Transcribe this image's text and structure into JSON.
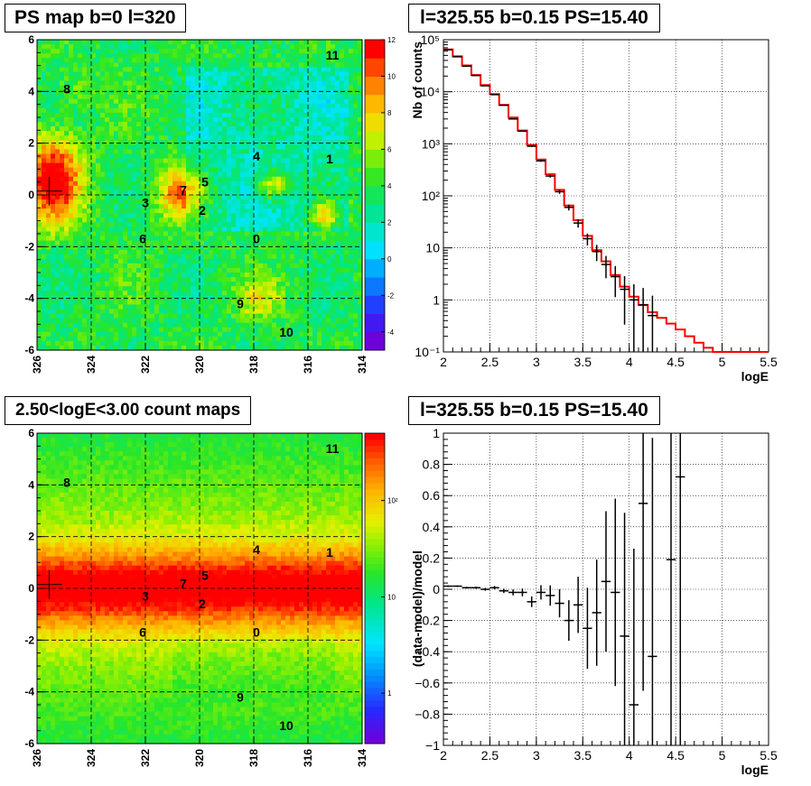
{
  "panels": {
    "tl": {
      "title": "PS map b=0 l=320"
    },
    "tr": {
      "title": "l=325.55 b=0.15 PS=15.40"
    },
    "bl": {
      "title": "2.50<logE<3.00 count maps"
    },
    "br": {
      "title": "l=325.55 b=0.15 PS=15.40"
    }
  },
  "chart_data": [
    {
      "type": "heatmap",
      "title": "PS map b=0 l=320",
      "xlim": [
        326,
        314
      ],
      "ylim": [
        -6,
        6
      ],
      "x_ticks": [
        326,
        324,
        322,
        320,
        318,
        316,
        314
      ],
      "y_ticks": [
        -6,
        -4,
        -2,
        0,
        2,
        4,
        6
      ],
      "colorbar": {
        "range": [
          -5,
          12
        ],
        "ticks": [
          -4,
          -2,
          0,
          2,
          4,
          6,
          8,
          10,
          12
        ]
      },
      "grid": true,
      "sources": [
        {
          "label": "0",
          "l": 317.9,
          "b": -1.7
        },
        {
          "label": "1",
          "l": 315.2,
          "b": 1.4
        },
        {
          "label": "2",
          "l": 319.9,
          "b": -0.6
        },
        {
          "label": "3",
          "l": 322.0,
          "b": -0.3
        },
        {
          "label": "4",
          "l": 317.9,
          "b": 1.5
        },
        {
          "label": "5",
          "l": 319.8,
          "b": 0.5
        },
        {
          "label": "6",
          "l": 322.1,
          "b": -1.7
        },
        {
          "label": "7",
          "l": 320.6,
          "b": 0.2
        },
        {
          "label": "8",
          "l": 324.9,
          "b": 4.1
        },
        {
          "label": "9",
          "l": 318.5,
          "b": -4.2
        },
        {
          "label": "10",
          "l": 316.8,
          "b": -5.3
        },
        {
          "label": "11",
          "l": 315.1,
          "b": 5.4
        }
      ],
      "marker": {
        "l": 325.55,
        "b": 0.15
      }
    },
    {
      "type": "line",
      "title": "l=325.55 b=0.15 PS=15.40",
      "xlabel": "logE",
      "ylabel": "Nb of counts",
      "xlim": [
        2,
        5.5
      ],
      "ylim": [
        0.1,
        100000
      ],
      "log_y": true,
      "x_ticks": [
        "2",
        "2.5",
        "3",
        "3.5",
        "4",
        "4.5",
        "5",
        "5.5"
      ],
      "y_ticks": [
        "10⁻¹",
        "1",
        "10",
        "10²",
        "10³",
        "10⁴",
        "10⁵"
      ],
      "grid": true,
      "series": [
        {
          "type": "step",
          "color": "#ff0000",
          "x": [
            2.0,
            2.1,
            2.2,
            2.3,
            2.4,
            2.5,
            2.6,
            2.7,
            2.8,
            2.9,
            3.0,
            3.1,
            3.2,
            3.3,
            3.4,
            3.5,
            3.6,
            3.7,
            3.8,
            3.9,
            4.0,
            4.1,
            4.2,
            4.3,
            4.4,
            4.5,
            4.6,
            4.7,
            4.8,
            4.9,
            5.0,
            5.1,
            5.2,
            5.3,
            5.4
          ],
          "values": [
            65000,
            48000,
            32000,
            21000,
            13500,
            9000,
            5600,
            3200,
            1800,
            950,
            500,
            260,
            130,
            65,
            34,
            17,
            9,
            5.5,
            3,
            1.8,
            1.15,
            0.8,
            0.58,
            0.45,
            0.35,
            0.27,
            0.2,
            0.15,
            0.12,
            0.1,
            0.1,
            0.1,
            0.1,
            0.1,
            0.1
          ]
        },
        {
          "type": "points",
          "color": "#000000",
          "x": [
            2.05,
            2.15,
            2.25,
            2.35,
            2.45,
            2.55,
            2.65,
            2.75,
            2.85,
            2.95,
            3.05,
            3.15,
            3.25,
            3.35,
            3.45,
            3.55,
            3.65,
            3.75,
            3.85,
            3.95,
            4.05,
            4.15,
            4.25,
            4.35,
            4.45,
            4.55,
            4.65,
            4.75,
            4.85
          ],
          "values": [
            64000,
            47000,
            31000,
            20500,
            13000,
            8800,
            5500,
            3000,
            1750,
            900,
            470,
            240,
            120,
            60,
            30,
            15,
            8.5,
            4.8,
            2.8,
            1.6,
            1.0,
            0.8,
            0.5,
            0.4,
            0.3,
            0.25,
            0.2,
            0.15,
            0.1
          ]
        }
      ]
    },
    {
      "type": "heatmap",
      "title": "2.50<logE<3.00 count maps",
      "xlim": [
        326,
        314
      ],
      "ylim": [
        -6,
        6
      ],
      "x_ticks": [
        326,
        324,
        322,
        320,
        318,
        316,
        314
      ],
      "y_ticks": [
        -6,
        -4,
        -2,
        0,
        2,
        4,
        6
      ],
      "colorbar": {
        "log": true,
        "range": [
          0.3,
          500
        ],
        "ticks": [
          "1",
          "10",
          "10²"
        ]
      },
      "grid": true,
      "sources": [
        {
          "label": "0",
          "l": 317.9,
          "b": -1.7
        },
        {
          "label": "1",
          "l": 315.2,
          "b": 1.4
        },
        {
          "label": "2",
          "l": 319.9,
          "b": -0.6
        },
        {
          "label": "3",
          "l": 322.0,
          "b": -0.3
        },
        {
          "label": "4",
          "l": 317.9,
          "b": 1.5
        },
        {
          "label": "5",
          "l": 319.8,
          "b": 0.5
        },
        {
          "label": "6",
          "l": 322.1,
          "b": -1.7
        },
        {
          "label": "7",
          "l": 320.6,
          "b": 0.2
        },
        {
          "label": "8",
          "l": 324.9,
          "b": 4.1
        },
        {
          "label": "9",
          "l": 318.5,
          "b": -4.2
        },
        {
          "label": "10",
          "l": 316.8,
          "b": -5.3
        },
        {
          "label": "11",
          "l": 315.1,
          "b": 5.4
        }
      ],
      "marker": {
        "l": 325.55,
        "b": 0.15
      }
    },
    {
      "type": "scatter",
      "title": "l=325.55 b=0.15 PS=15.40",
      "xlabel": "logE",
      "ylabel": "(data-model)/model",
      "xlim": [
        2,
        5.5
      ],
      "ylim": [
        -1,
        1
      ],
      "x_ticks": [
        "2",
        "2.5",
        "3",
        "3.5",
        "4",
        "4.5",
        "5",
        "5.5"
      ],
      "y_ticks": [
        "−1",
        "−0.8",
        "−0.6",
        "−0.4",
        "−0.2",
        "0",
        "0.2",
        "0.4",
        "0.6",
        "0.8",
        "1"
      ],
      "grid": true,
      "series": [
        {
          "color": "#000000",
          "x": [
            2.05,
            2.15,
            2.25,
            2.35,
            2.45,
            2.55,
            2.65,
            2.75,
            2.85,
            2.95,
            3.05,
            3.15,
            3.25,
            3.35,
            3.45,
            3.55,
            3.65,
            3.75,
            3.85,
            3.95,
            4.05,
            4.15,
            4.25,
            4.45,
            4.55
          ],
          "values": [
            0.02,
            0.02,
            0.01,
            0.01,
            0.0,
            0.01,
            -0.01,
            -0.02,
            -0.02,
            -0.08,
            -0.02,
            -0.04,
            -0.09,
            -0.2,
            -0.1,
            -0.25,
            -0.15,
            0.05,
            -0.02,
            -0.3,
            -0.74,
            0.55,
            -0.43,
            0.19,
            0.72
          ],
          "errors": [
            0.005,
            0.005,
            0.006,
            0.007,
            0.009,
            0.011,
            0.014,
            0.019,
            0.025,
            0.034,
            0.046,
            0.065,
            0.09,
            0.13,
            0.18,
            0.26,
            0.34,
            0.45,
            0.6,
            0.79,
            1.0,
            1.2,
            1.4,
            1.8,
            2.0
          ]
        }
      ]
    }
  ]
}
